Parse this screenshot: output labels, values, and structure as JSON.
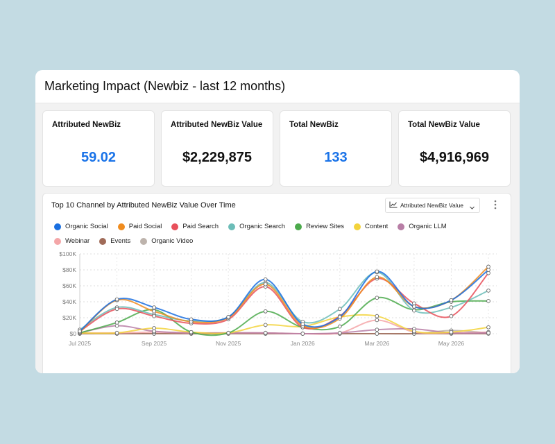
{
  "header": {
    "title": "Marketing Impact (Newbiz - last 12 months)"
  },
  "kpis": [
    {
      "label": "Attributed NewBiz",
      "value": "59.02",
      "style": "blue"
    },
    {
      "label": "Attributed NewBiz Value",
      "value": "$2,229,875",
      "style": "black"
    },
    {
      "label": "Total NewBiz",
      "value": "133",
      "style": "blue"
    },
    {
      "label": "Total NewBiz Value",
      "value": "$4,916,969",
      "style": "black"
    }
  ],
  "chart_panel": {
    "title": "Top 10 Channel by Attributed NewBiz Value Over Time",
    "metric_select": "Attributed NewBiz Value",
    "icons": {
      "chart": "line-chart-icon",
      "dropdown": "chevron-down-icon",
      "menu": "more-vertical-icon"
    }
  },
  "chart_data": {
    "type": "line",
    "title": "",
    "xlabel": "",
    "ylabel": "",
    "x": [
      "Jul 2025",
      "Aug 2025",
      "Sep 2025",
      "Oct 2025",
      "Nov 2025",
      "Dec 2025",
      "Jan 2026",
      "Feb 2026",
      "Mar 2026",
      "Apr 2026",
      "May 2026",
      "Jun 2026"
    ],
    "x_tick_labels": [
      "Jul 2025",
      "Sep 2025",
      "Nov 2025",
      "Jan 2026",
      "Mar 2026",
      "May 2026"
    ],
    "y_tick_labels": [
      "$0",
      "$20K",
      "$40K",
      "$60K",
      "$80K",
      "$100K"
    ],
    "ylim": [
      0,
      100000
    ],
    "grid": true,
    "legend_position": "top",
    "series": [
      {
        "name": "Organic Social",
        "color": "#1a6fe0",
        "values": [
          3000,
          43000,
          33000,
          18000,
          21000,
          68000,
          12000,
          21000,
          78000,
          34000,
          42000,
          80000
        ]
      },
      {
        "name": "Paid Social",
        "color": "#f08c1e",
        "values": [
          2000,
          42000,
          28000,
          15000,
          20000,
          62000,
          10000,
          19000,
          71000,
          34000,
          42000,
          84000
        ]
      },
      {
        "name": "Paid Search",
        "color": "#e8505b",
        "values": [
          3000,
          31000,
          22000,
          13000,
          18000,
          59000,
          8000,
          22000,
          69000,
          38000,
          22000,
          76000
        ]
      },
      {
        "name": "Organic Search",
        "color": "#6cbdb8",
        "values": [
          5000,
          33000,
          24000,
          16000,
          21000,
          64000,
          15000,
          31000,
          77000,
          29000,
          33000,
          54000
        ]
      },
      {
        "name": "Review Sites",
        "color": "#4caa4c",
        "values": [
          1000,
          14000,
          30000,
          2000,
          1000,
          28000,
          8000,
          9000,
          45000,
          30000,
          40000,
          41000
        ]
      },
      {
        "name": "Content",
        "color": "#f3d33c",
        "values": [
          1000,
          1000,
          7000,
          2000,
          1000,
          11000,
          9000,
          21000,
          22000,
          3000,
          2000,
          8000
        ]
      },
      {
        "name": "Organic LLM",
        "color": "#b87ea6",
        "values": [
          1000,
          10000,
          3000,
          1000,
          1000,
          1000,
          0,
          1000,
          5000,
          6000,
          1000,
          1000
        ]
      },
      {
        "name": "Webinar",
        "color": "#f4a6a8",
        "values": [
          1000,
          1000,
          2000,
          1000,
          1000,
          1000,
          0,
          1000,
          17000,
          2000,
          1000,
          2000
        ]
      },
      {
        "name": "Events",
        "color": "#a06b58",
        "values": [
          0,
          0,
          0,
          0,
          0,
          0,
          0,
          0,
          0,
          0,
          0,
          0
        ]
      },
      {
        "name": "Organic Video",
        "color": "#bdb3ac",
        "values": [
          0,
          0,
          0,
          0,
          0,
          0,
          0,
          0,
          0,
          0,
          4000,
          1000
        ]
      }
    ]
  }
}
